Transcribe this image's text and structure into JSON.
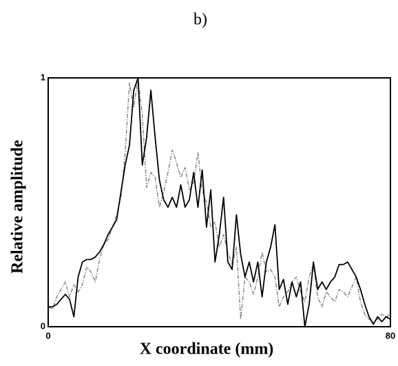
{
  "chart_data": {
    "type": "line",
    "title": "b)",
    "x_label": "X coordinate (mm)",
    "y_label": "Relative amplitude",
    "xlim": [
      0,
      80
    ],
    "xticks": [
      0,
      80
    ],
    "ylim": [
      0,
      1
    ],
    "yticks": [
      0,
      1
    ],
    "grid": false,
    "x": [
      0,
      1,
      2,
      3,
      4,
      5,
      6,
      7,
      8,
      9,
      10,
      11,
      12,
      13,
      14,
      15,
      16,
      17,
      18,
      19,
      20,
      21,
      22,
      23,
      24,
      25,
      26,
      27,
      28,
      29,
      30,
      31,
      32,
      33,
      34,
      35,
      36,
      37,
      38,
      39,
      40,
      41,
      42,
      43,
      44,
      45,
      46,
      47,
      48,
      49,
      50,
      51,
      52,
      53,
      54,
      55,
      56,
      57,
      58,
      59,
      60,
      61,
      62,
      63,
      64,
      65,
      66,
      67,
      68,
      69,
      70,
      71,
      72,
      73,
      74,
      75,
      76,
      77,
      78,
      79,
      80
    ],
    "series": [
      {
        "color": "#000000",
        "linestyle": "solid",
        "values": [
          0.08,
          0.08,
          0.09,
          0.11,
          0.13,
          0.11,
          0.04,
          0.2,
          0.26,
          0.27,
          0.27,
          0.28,
          0.3,
          0.33,
          0.37,
          0.4,
          0.43,
          0.54,
          0.65,
          0.73,
          0.95,
          1.0,
          0.65,
          0.76,
          0.95,
          0.76,
          0.59,
          0.51,
          0.48,
          0.52,
          0.48,
          0.57,
          0.48,
          0.51,
          0.62,
          0.48,
          0.63,
          0.4,
          0.55,
          0.26,
          0.37,
          0.52,
          0.26,
          0.23,
          0.45,
          0.29,
          0.2,
          0.26,
          0.18,
          0.26,
          0.12,
          0.26,
          0.32,
          0.41,
          0.15,
          0.19,
          0.09,
          0.18,
          0.12,
          0.18,
          0.0,
          0.09,
          0.26,
          0.15,
          0.18,
          0.15,
          0.18,
          0.2,
          0.25,
          0.25,
          0.26,
          0.23,
          0.2,
          0.15,
          0.09,
          0.04,
          0.01,
          0.04,
          0.02,
          0.04,
          0.03
        ]
      },
      {
        "color": "#808080",
        "linestyle": "dashdot",
        "values": [
          0.08,
          0.07,
          0.12,
          0.15,
          0.18,
          0.12,
          0.17,
          0.14,
          0.17,
          0.24,
          0.22,
          0.18,
          0.27,
          0.33,
          0.35,
          0.4,
          0.45,
          0.52,
          0.7,
          0.98,
          0.88,
          1.0,
          0.85,
          0.56,
          0.62,
          0.6,
          0.48,
          0.54,
          0.62,
          0.71,
          0.66,
          0.6,
          0.64,
          0.55,
          0.58,
          0.7,
          0.55,
          0.5,
          0.4,
          0.42,
          0.32,
          0.37,
          0.3,
          0.25,
          0.32,
          0.03,
          0.2,
          0.18,
          0.13,
          0.2,
          0.3,
          0.22,
          0.23,
          0.2,
          0.08,
          0.12,
          0.14,
          0.18,
          0.2,
          0.14,
          0.1,
          0.2,
          0.25,
          0.12,
          0.08,
          0.14,
          0.12,
          0.1,
          0.15,
          0.14,
          0.12,
          0.16,
          0.2,
          0.1,
          0.05,
          0.03,
          0.02,
          0.03,
          0.05,
          0.04,
          0.05
        ]
      }
    ]
  }
}
